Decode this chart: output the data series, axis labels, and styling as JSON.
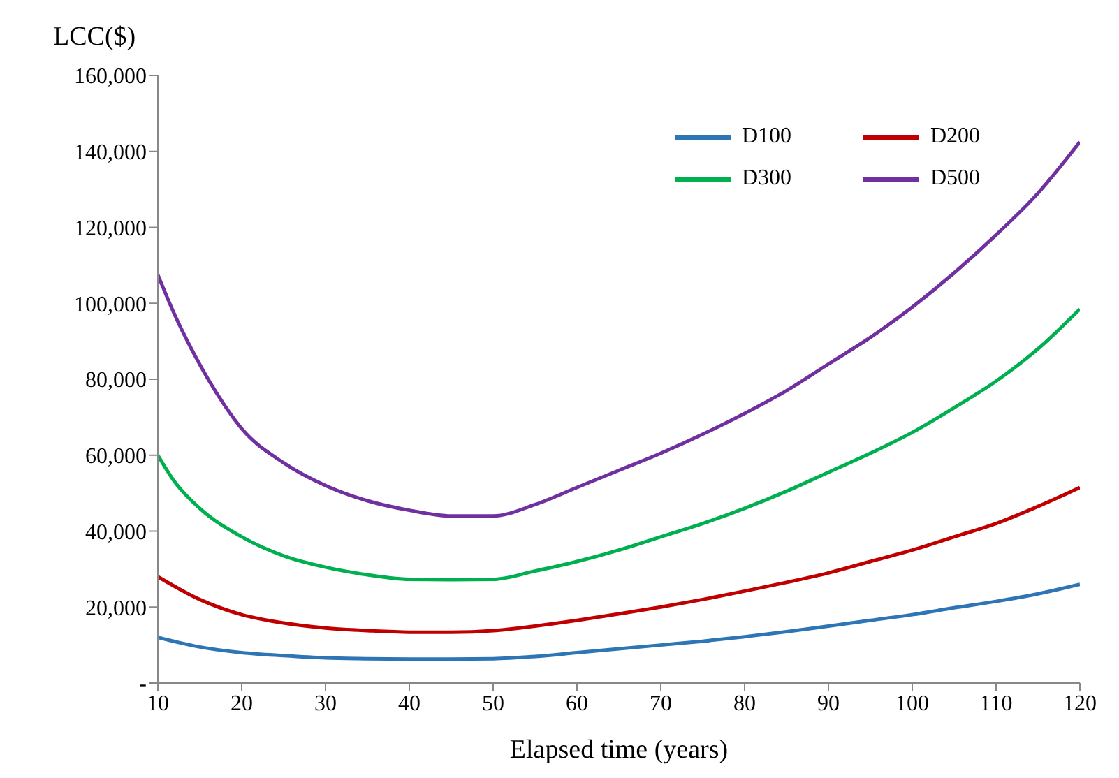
{
  "chart_data": {
    "type": "line",
    "xlabel": "Elapsed time (years)",
    "ylabel": "LCC($)",
    "xlim": [
      10,
      120
    ],
    "xticks": [
      10,
      20,
      30,
      40,
      50,
      60,
      70,
      80,
      90,
      100,
      110,
      120
    ],
    "ylim": [
      0,
      160000
    ],
    "yticks": [
      {
        "value": 0,
        "label": "-"
      },
      {
        "value": 20000,
        "label": "20,000"
      },
      {
        "value": 40000,
        "label": "40,000"
      },
      {
        "value": 60000,
        "label": "60,000"
      },
      {
        "value": 80000,
        "label": "80,000"
      },
      {
        "value": 100000,
        "label": "100,000"
      },
      {
        "value": 120000,
        "label": "120,000"
      },
      {
        "value": 140000,
        "label": "140,000"
      },
      {
        "value": 160000,
        "label": "160,000"
      }
    ],
    "grid": false,
    "legend": "top right",
    "marker": "none",
    "line_style": "solid",
    "series": [
      {
        "name": "D100",
        "color": "#2e75b6",
        "x": [
          10,
          15,
          20,
          25,
          30,
          35,
          40,
          45,
          50,
          55,
          60,
          65,
          70,
          75,
          80,
          85,
          90,
          95,
          100,
          105,
          110,
          115,
          120
        ],
        "values": [
          12000,
          9500,
          8000,
          7200,
          6600,
          6400,
          6300,
          6300,
          6400,
          7000,
          8000,
          9000,
          10000,
          11000,
          12200,
          13500,
          15000,
          16500,
          18000,
          19800,
          21500,
          23500,
          26000
        ]
      },
      {
        "name": "D200",
        "color": "#c00000",
        "x": [
          10,
          15,
          20,
          25,
          30,
          35,
          40,
          45,
          50,
          55,
          60,
          65,
          70,
          75,
          80,
          85,
          90,
          95,
          100,
          105,
          110,
          115,
          120
        ],
        "values": [
          28000,
          22000,
          18000,
          15800,
          14500,
          13800,
          13400,
          13400,
          13800,
          15000,
          16500,
          18200,
          20000,
          22000,
          24200,
          26500,
          29000,
          32000,
          35000,
          38500,
          42000,
          46500,
          51500
        ]
      },
      {
        "name": "D300",
        "color": "#00b050",
        "x": [
          10,
          12,
          15,
          20,
          25,
          30,
          35,
          40,
          45,
          50,
          55,
          60,
          65,
          70,
          75,
          80,
          85,
          90,
          95,
          100,
          105,
          110,
          115,
          120
        ],
        "values": [
          60000,
          53000,
          46000,
          38500,
          33500,
          30500,
          28500,
          27300,
          27200,
          27300,
          29500,
          32000,
          35000,
          38500,
          42000,
          46000,
          50500,
          55500,
          60500,
          66000,
          72500,
          79500,
          88000,
          98500
        ]
      },
      {
        "name": "D500",
        "color": "#7030a0",
        "x": [
          10,
          12,
          14,
          16,
          18,
          20,
          25,
          30,
          35,
          40,
          45,
          50,
          55,
          60,
          65,
          70,
          75,
          80,
          85,
          90,
          95,
          100,
          105,
          110,
          115,
          120
        ],
        "values": [
          107500,
          97000,
          88000,
          80000,
          73000,
          67000,
          58000,
          52000,
          48000,
          45500,
          44000,
          44000,
          47000,
          51500,
          56000,
          60500,
          65500,
          71000,
          77000,
          84000,
          91000,
          99000,
          108000,
          118000,
          129000,
          142500
        ]
      }
    ]
  }
}
